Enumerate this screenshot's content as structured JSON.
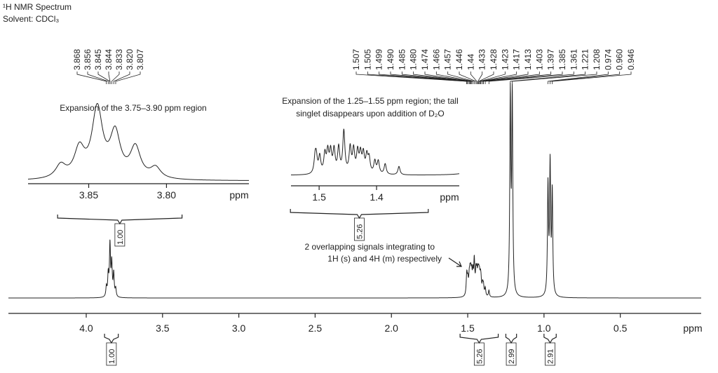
{
  "header": {
    "title": "¹H NMR Spectrum",
    "solvent": "Solvent: CDCl₃"
  },
  "spectrum": {
    "x_label": "ppm",
    "xlim": [
      4.51,
      -0.03
    ],
    "xticks": [
      {
        "value": 4,
        "label": "4.0"
      },
      3.5,
      {
        "value": 3,
        "label": "3.0"
      },
      2.5,
      {
        "value": 2,
        "label": "2.0"
      },
      1.5,
      {
        "value": 1,
        "label": "1.0"
      },
      0.5
    ],
    "peak_groups": [
      [
        3.868,
        3.856,
        3.845,
        3.844,
        3.833,
        {
          "value": 3.82,
          "label": "3.820"
        },
        3.807
      ],
      [
        1.507,
        1.505,
        1.499,
        {
          "value": 1.49,
          "label": "1.490"
        },
        1.485,
        {
          "value": 1.48,
          "label": "1.480"
        },
        1.474,
        1.466,
        1.457,
        1.446,
        1.44,
        1.433,
        1.428,
        1.423,
        1.417,
        1.413,
        1.403,
        1.397,
        1.385,
        1.361,
        1.221,
        1.208,
        0.974,
        {
          "value": 0.96,
          "label": "0.960"
        },
        0.946
      ]
    ],
    "integrals": [
      {
        "value": 1,
        "label": "1.00",
        "region": [
          3.88,
          3.79
        ]
      },
      {
        "value": 5.26,
        "region": [
          1.55,
          1.3
        ]
      },
      {
        "value": 2.99,
        "region": [
          1.25,
          1.18
        ]
      },
      {
        "value": 2.91,
        "region": [
          1.0,
          0.92
        ]
      }
    ]
  },
  "insets": [
    {
      "title": [
        "Expansion of the 3.75–3.90 ppm region"
      ],
      "x_label": "ppm",
      "xlim": [
        3.889,
        3.747
      ],
      "xticks": [
        3.85,
        {
          "value": 3.8,
          "label": "3.80"
        }
      ],
      "integral": {
        "value": 1,
        "label": "1.00",
        "region": [
          3.87,
          3.79
        ]
      }
    },
    {
      "title": [
        "Expansion of the 1.25–1.55 ppm region; the tall",
        "singlet disappears upon addition of D₂O"
      ],
      "x_label": "ppm",
      "xlim": [
        1.549,
        1.256
      ],
      "xticks": [
        1.5,
        1.4
      ],
      "integral": {
        "value": 5.26,
        "region": [
          1.55,
          1.31
        ]
      }
    }
  ],
  "annotation": [
    "2 overlapping signals integrating to",
    "1H (s) and 4H (m) respectively"
  ]
}
